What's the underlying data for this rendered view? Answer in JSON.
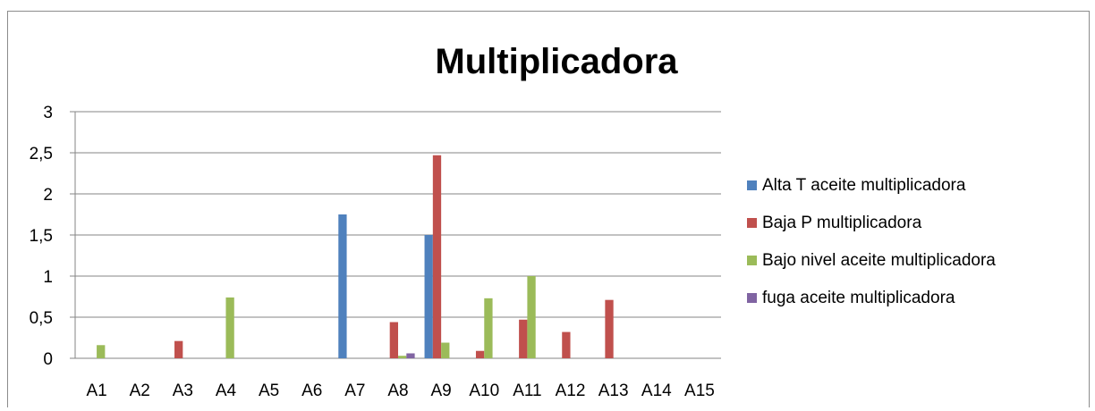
{
  "chart_data": {
    "type": "bar",
    "title": "Multiplicadora",
    "xlabel": "",
    "ylabel": "",
    "ylim": [
      0,
      3
    ],
    "yticks": [
      "0",
      "0,5",
      "1",
      "1,5",
      "2",
      "2,5",
      "3"
    ],
    "grid": true,
    "legend_position": "right",
    "categories": [
      "A1",
      "A2",
      "A3",
      "A4",
      "A5",
      "A6",
      "A7",
      "A8",
      "A9",
      "A10",
      "A11",
      "A12",
      "A13",
      "A14",
      "A15"
    ],
    "series": [
      {
        "name": "Alta T aceite multiplicadora",
        "color": "#4f81bd",
        "values": [
          0,
          0,
          0,
          0,
          0,
          0,
          1.75,
          0,
          1.5,
          0,
          0,
          0,
          0,
          0,
          0
        ]
      },
      {
        "name": "Baja P multiplicadora",
        "color": "#c0504d",
        "values": [
          0,
          0,
          0.21,
          0,
          0,
          0,
          0,
          0.44,
          2.47,
          0.09,
          0.47,
          0.32,
          0.71,
          0,
          0
        ]
      },
      {
        "name": "Bajo nivel aceite multiplicadora",
        "color": "#9bbb59",
        "values": [
          0.16,
          0,
          0,
          0.74,
          0,
          0,
          0,
          0.03,
          0.19,
          0.73,
          1.0,
          0,
          0,
          0,
          0
        ]
      },
      {
        "name": "fuga aceite multiplicadora",
        "color": "#8064a2",
        "values": [
          0,
          0,
          0,
          0,
          0,
          0,
          0,
          0.06,
          0,
          0,
          0,
          0,
          0,
          0,
          0
        ]
      }
    ]
  }
}
